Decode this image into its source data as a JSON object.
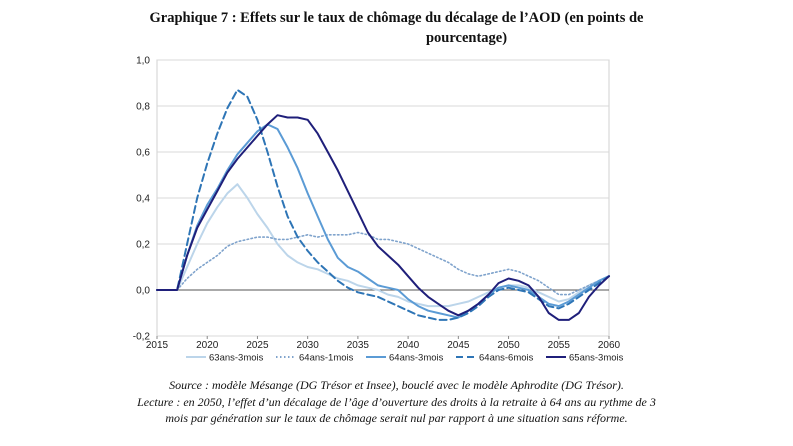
{
  "title_line1": "Graphique 7 :   Effets sur le taux de chômage du décalage de l’AOD (en points de",
  "title_line2": "pourcentage)",
  "source": "Source : modèle Mésange (DG Trésor et Insee), bouclé avec le modèle Aphrodite (DG Trésor).",
  "lecture_line1": "Lecture : en 2050, l’effet d’un décalage de l’âge d’ouverture des droits à la retraite à 64 ans au rythme de 3",
  "lecture_line2": "mois par génération sur le taux de chômage serait nul par rapport à une situation sans réforme.",
  "chart_data": {
    "type": "line",
    "title": "",
    "xlabel": "",
    "ylabel": "",
    "xlim": [
      2015,
      2060
    ],
    "ylim": [
      -0.2,
      1.0
    ],
    "x_ticks": [
      2015,
      2020,
      2025,
      2030,
      2035,
      2040,
      2045,
      2050,
      2055,
      2060
    ],
    "y_ticks": [
      -0.2,
      0.0,
      0.2,
      0.4,
      0.6,
      0.8,
      1.0
    ],
    "y_tick_labels": [
      "-0,2",
      "0,0",
      "0,2",
      "0,4",
      "0,6",
      "0,8",
      "1,0"
    ],
    "grid": "horizontal",
    "legend_position": "bottom",
    "series": [
      {
        "name": "63ans-3mois",
        "color": "#bcd5ea",
        "dash": "solid",
        "points": [
          [
            2015,
            0
          ],
          [
            2016,
            0
          ],
          [
            2017,
            0
          ],
          [
            2018,
            0.1
          ],
          [
            2019,
            0.2
          ],
          [
            2020,
            0.29
          ],
          [
            2021,
            0.36
          ],
          [
            2022,
            0.42
          ],
          [
            2023,
            0.46
          ],
          [
            2024,
            0.4
          ],
          [
            2025,
            0.33
          ],
          [
            2026,
            0.27
          ],
          [
            2027,
            0.2
          ],
          [
            2028,
            0.15
          ],
          [
            2029,
            0.12
          ],
          [
            2030,
            0.1
          ],
          [
            2031,
            0.09
          ],
          [
            2032,
            0.07
          ],
          [
            2033,
            0.05
          ],
          [
            2034,
            0.04
          ],
          [
            2035,
            0.02
          ],
          [
            2036,
            0.01
          ],
          [
            2037,
            0
          ],
          [
            2038,
            -0.02
          ],
          [
            2039,
            -0.03
          ],
          [
            2040,
            -0.05
          ],
          [
            2041,
            -0.06
          ],
          [
            2042,
            -0.07
          ],
          [
            2043,
            -0.07
          ],
          [
            2044,
            -0.07
          ],
          [
            2045,
            -0.06
          ],
          [
            2046,
            -0.05
          ],
          [
            2047,
            -0.03
          ],
          [
            2048,
            -0.01
          ],
          [
            2049,
            0.01
          ],
          [
            2050,
            0.02
          ],
          [
            2051,
            0.02
          ],
          [
            2052,
            0.01
          ],
          [
            2053,
            -0.01
          ],
          [
            2054,
            -0.03
          ],
          [
            2055,
            -0.05
          ],
          [
            2056,
            -0.04
          ],
          [
            2057,
            -0.01
          ],
          [
            2058,
            0.02
          ],
          [
            2059,
            0.04
          ],
          [
            2060,
            0.06
          ]
        ]
      },
      {
        "name": "64ans-1mois",
        "color": "#7fa3cc",
        "dash": "dotted",
        "points": [
          [
            2015,
            0
          ],
          [
            2016,
            0
          ],
          [
            2017,
            0
          ],
          [
            2018,
            0.05
          ],
          [
            2019,
            0.09
          ],
          [
            2020,
            0.12
          ],
          [
            2021,
            0.15
          ],
          [
            2022,
            0.19
          ],
          [
            2023,
            0.21
          ],
          [
            2024,
            0.22
          ],
          [
            2025,
            0.23
          ],
          [
            2026,
            0.23
          ],
          [
            2027,
            0.22
          ],
          [
            2028,
            0.22
          ],
          [
            2029,
            0.23
          ],
          [
            2030,
            0.24
          ],
          [
            2031,
            0.23
          ],
          [
            2032,
            0.24
          ],
          [
            2033,
            0.24
          ],
          [
            2034,
            0.24
          ],
          [
            2035,
            0.25
          ],
          [
            2036,
            0.24
          ],
          [
            2037,
            0.22
          ],
          [
            2038,
            0.22
          ],
          [
            2039,
            0.21
          ],
          [
            2040,
            0.2
          ],
          [
            2041,
            0.18
          ],
          [
            2042,
            0.16
          ],
          [
            2043,
            0.14
          ],
          [
            2044,
            0.12
          ],
          [
            2045,
            0.09
          ],
          [
            2046,
            0.07
          ],
          [
            2047,
            0.06
          ],
          [
            2048,
            0.07
          ],
          [
            2049,
            0.08
          ],
          [
            2050,
            0.09
          ],
          [
            2051,
            0.08
          ],
          [
            2052,
            0.06
          ],
          [
            2053,
            0.04
          ],
          [
            2054,
            0.01
          ],
          [
            2055,
            -0.02
          ],
          [
            2056,
            -0.02
          ],
          [
            2057,
            0
          ],
          [
            2058,
            0.02
          ],
          [
            2059,
            0.04
          ],
          [
            2060,
            0.06
          ]
        ]
      },
      {
        "name": "64ans-3mois",
        "color": "#5b9bd5",
        "dash": "solid",
        "points": [
          [
            2015,
            0
          ],
          [
            2016,
            0
          ],
          [
            2017,
            0
          ],
          [
            2018,
            0.15
          ],
          [
            2019,
            0.28
          ],
          [
            2020,
            0.37
          ],
          [
            2021,
            0.44
          ],
          [
            2022,
            0.52
          ],
          [
            2023,
            0.59
          ],
          [
            2024,
            0.64
          ],
          [
            2025,
            0.69
          ],
          [
            2026,
            0.72
          ],
          [
            2027,
            0.7
          ],
          [
            2028,
            0.62
          ],
          [
            2029,
            0.53
          ],
          [
            2030,
            0.42
          ],
          [
            2031,
            0.32
          ],
          [
            2032,
            0.22
          ],
          [
            2033,
            0.14
          ],
          [
            2034,
            0.1
          ],
          [
            2035,
            0.08
          ],
          [
            2036,
            0.05
          ],
          [
            2037,
            0.02
          ],
          [
            2038,
            0.01
          ],
          [
            2039,
            0
          ],
          [
            2040,
            -0.04
          ],
          [
            2041,
            -0.07
          ],
          [
            2042,
            -0.09
          ],
          [
            2043,
            -0.1
          ],
          [
            2044,
            -0.11
          ],
          [
            2045,
            -0.12
          ],
          [
            2046,
            -0.09
          ],
          [
            2047,
            -0.06
          ],
          [
            2048,
            -0.02
          ],
          [
            2049,
            0.01
          ],
          [
            2050,
            0.02
          ],
          [
            2051,
            0.01
          ],
          [
            2052,
            0
          ],
          [
            2053,
            -0.03
          ],
          [
            2054,
            -0.06
          ],
          [
            2055,
            -0.07
          ],
          [
            2056,
            -0.05
          ],
          [
            2057,
            -0.02
          ],
          [
            2058,
            0.01
          ],
          [
            2059,
            0.04
          ],
          [
            2060,
            0.06
          ]
        ]
      },
      {
        "name": "64ans-6mois",
        "color": "#2e75b6",
        "dash": "dashed",
        "points": [
          [
            2015,
            0
          ],
          [
            2016,
            0
          ],
          [
            2017,
            0
          ],
          [
            2018,
            0.2
          ],
          [
            2019,
            0.4
          ],
          [
            2020,
            0.55
          ],
          [
            2021,
            0.68
          ],
          [
            2022,
            0.79
          ],
          [
            2023,
            0.87
          ],
          [
            2024,
            0.84
          ],
          [
            2025,
            0.74
          ],
          [
            2026,
            0.6
          ],
          [
            2027,
            0.45
          ],
          [
            2028,
            0.32
          ],
          [
            2029,
            0.23
          ],
          [
            2030,
            0.17
          ],
          [
            2031,
            0.12
          ],
          [
            2032,
            0.08
          ],
          [
            2033,
            0.04
          ],
          [
            2034,
            0.01
          ],
          [
            2035,
            -0.01
          ],
          [
            2036,
            -0.02
          ],
          [
            2037,
            -0.03
          ],
          [
            2038,
            -0.05
          ],
          [
            2039,
            -0.07
          ],
          [
            2040,
            -0.09
          ],
          [
            2041,
            -0.11
          ],
          [
            2042,
            -0.12
          ],
          [
            2043,
            -0.13
          ],
          [
            2044,
            -0.13
          ],
          [
            2045,
            -0.12
          ],
          [
            2046,
            -0.1
          ],
          [
            2047,
            -0.07
          ],
          [
            2048,
            -0.03
          ],
          [
            2049,
            0
          ],
          [
            2050,
            0.01
          ],
          [
            2051,
            0
          ],
          [
            2052,
            -0.01
          ],
          [
            2053,
            -0.04
          ],
          [
            2054,
            -0.07
          ],
          [
            2055,
            -0.08
          ],
          [
            2056,
            -0.06
          ],
          [
            2057,
            -0.03
          ],
          [
            2058,
            0
          ],
          [
            2059,
            0.03
          ],
          [
            2060,
            0.06
          ]
        ]
      },
      {
        "name": "65ans-3mois",
        "color": "#1f1f7a",
        "dash": "solid",
        "points": [
          [
            2015,
            0
          ],
          [
            2016,
            0
          ],
          [
            2017,
            0
          ],
          [
            2018,
            0.15
          ],
          [
            2019,
            0.27
          ],
          [
            2020,
            0.35
          ],
          [
            2021,
            0.43
          ],
          [
            2022,
            0.51
          ],
          [
            2023,
            0.57
          ],
          [
            2024,
            0.62
          ],
          [
            2025,
            0.67
          ],
          [
            2026,
            0.72
          ],
          [
            2027,
            0.76
          ],
          [
            2028,
            0.75
          ],
          [
            2029,
            0.75
          ],
          [
            2030,
            0.74
          ],
          [
            2031,
            0.68
          ],
          [
            2032,
            0.6
          ],
          [
            2033,
            0.52
          ],
          [
            2034,
            0.43
          ],
          [
            2035,
            0.34
          ],
          [
            2036,
            0.25
          ],
          [
            2037,
            0.19
          ],
          [
            2038,
            0.15
          ],
          [
            2039,
            0.11
          ],
          [
            2040,
            0.06
          ],
          [
            2041,
            0.01
          ],
          [
            2042,
            -0.03
          ],
          [
            2043,
            -0.06
          ],
          [
            2044,
            -0.09
          ],
          [
            2045,
            -0.11
          ],
          [
            2046,
            -0.09
          ],
          [
            2047,
            -0.06
          ],
          [
            2048,
            -0.02
          ],
          [
            2049,
            0.03
          ],
          [
            2050,
            0.05
          ],
          [
            2051,
            0.04
          ],
          [
            2052,
            0.02
          ],
          [
            2053,
            -0.03
          ],
          [
            2054,
            -0.1
          ],
          [
            2055,
            -0.13
          ],
          [
            2056,
            -0.13
          ],
          [
            2057,
            -0.1
          ],
          [
            2058,
            -0.03
          ],
          [
            2059,
            0.02
          ],
          [
            2060,
            0.06
          ]
        ]
      }
    ]
  }
}
